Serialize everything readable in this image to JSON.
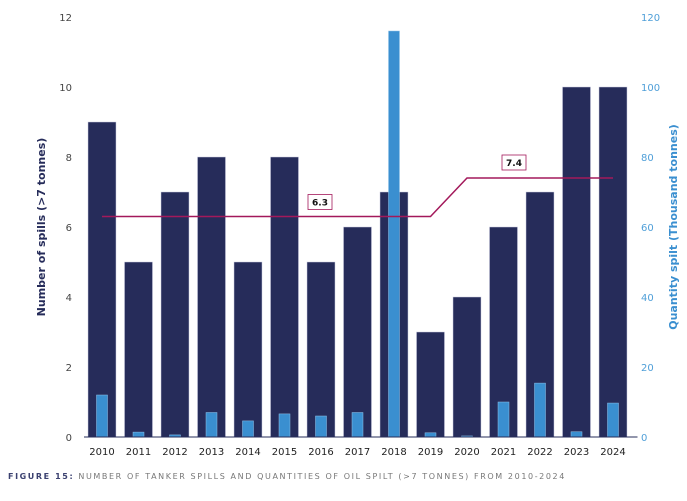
{
  "chart_data": {
    "type": "bar",
    "title": "",
    "caption_prefix": "FIGURE 15:",
    "caption_text": " NUMBER OF TANKER SPILLS AND QUANTITIES OF OIL SPILT (>7 TONNES) FROM 2010-2024",
    "categories": [
      "2010",
      "2011",
      "2012",
      "2013",
      "2014",
      "2015",
      "2016",
      "2017",
      "2018",
      "2019",
      "2020",
      "2021",
      "2022",
      "2023",
      "2024"
    ],
    "series": [
      {
        "name": "Number of spills (>7 tonnes)",
        "axis": "left",
        "color": "#262c5a",
        "values": [
          9,
          5,
          7,
          8,
          5,
          8,
          5,
          6,
          7,
          3,
          4,
          6,
          7,
          10,
          10
        ]
      },
      {
        "name": "Quantity spilt (Thousand tonnes)",
        "axis": "right",
        "color": "#3a8fd0",
        "values": [
          12,
          1.4,
          0.6,
          7,
          4.6,
          6.6,
          6,
          7,
          116,
          1.2,
          0.3,
          10,
          15.4,
          1.5,
          9.7
        ]
      }
    ],
    "averages": [
      {
        "label": "6.3",
        "value": 6.3,
        "from": "2010",
        "to": "2019"
      },
      {
        "label": "7.4",
        "value": 7.4,
        "from": "2020",
        "to": "2024"
      }
    ],
    "average_color": "#a3195b",
    "ylabel_left": "Number of spills (>7 tonnes)",
    "ylabel_right": "Quantity spilt (Thousand tonnes)",
    "ylim_left": [
      0,
      12
    ],
    "ylim_right": [
      0,
      120
    ],
    "yticks_left": [
      "0",
      "2",
      "4",
      "6",
      "8",
      "10",
      "12"
    ],
    "yticks_right": [
      "0",
      "20",
      "40",
      "60",
      "80",
      "100",
      "120"
    ],
    "grid": false,
    "legend": "none"
  }
}
